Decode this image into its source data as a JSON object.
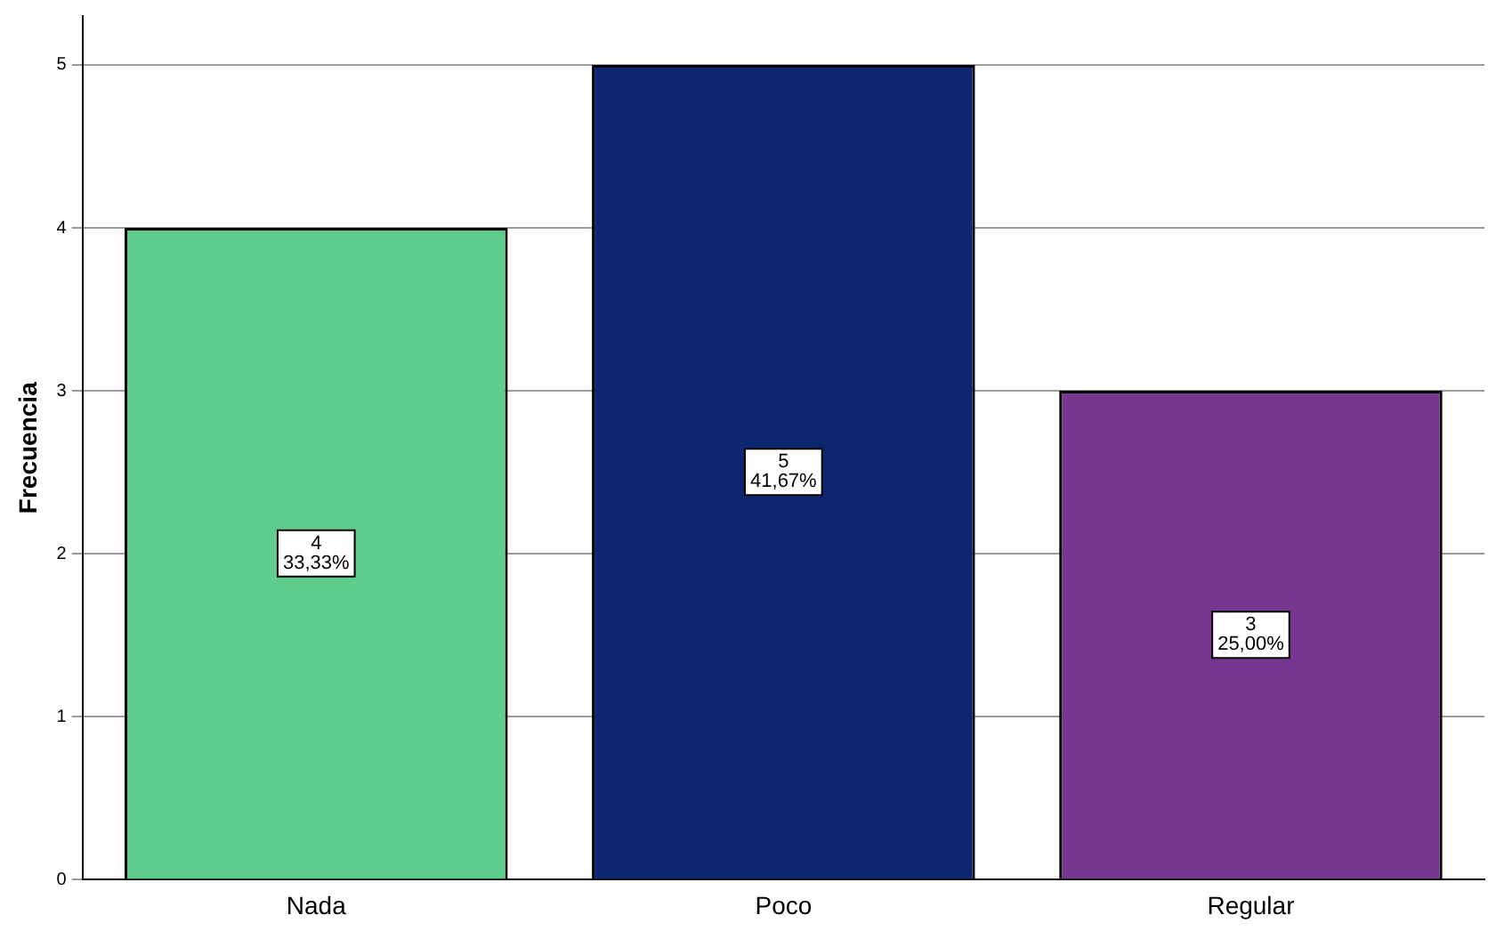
{
  "chart_data": {
    "type": "bar",
    "ylabel": "Frecuencia",
    "categories": [
      "Nada",
      "Poco",
      "Regular"
    ],
    "values": [
      4,
      5,
      3
    ],
    "colors": [
      "#5fcc8c",
      "#0c2670",
      "#76388f"
    ],
    "value_labels": [
      "4\n33,33%",
      "5\n41,67%",
      "3\n25,00%"
    ],
    "ylim": [
      0,
      5.3
    ],
    "yticks": [
      0,
      1,
      2,
      3,
      4,
      5
    ],
    "grid": "y",
    "legend": false
  }
}
